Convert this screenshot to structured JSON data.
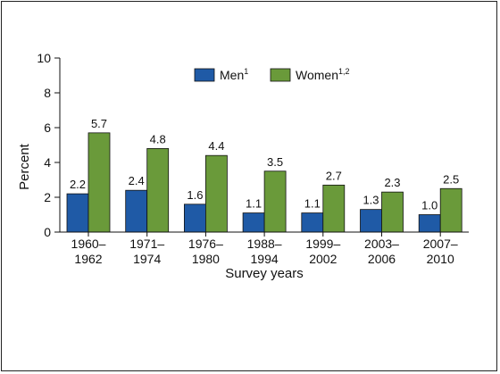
{
  "chart_data": {
    "type": "bar",
    "xlabel": "Survey years",
    "ylabel": "Percent",
    "ylim": [
      0,
      10
    ],
    "yticks": [
      0,
      2,
      4,
      6,
      8,
      10
    ],
    "categories": [
      [
        "1960–",
        "1962"
      ],
      [
        "1971–",
        "1974"
      ],
      [
        "1976–",
        "1980"
      ],
      [
        "1988–",
        "1994"
      ],
      [
        "1999–",
        "2002"
      ],
      [
        "2003–",
        "2006"
      ],
      [
        "2007–",
        "2010"
      ]
    ],
    "series": [
      {
        "name": "Men",
        "sup": "1",
        "color": "#1f5aa6",
        "values": [
          2.2,
          2.4,
          1.6,
          1.1,
          1.1,
          1.3,
          1.0
        ],
        "labels": [
          "2.2",
          "2.4",
          "1.6",
          "1.1",
          "1.1",
          "1.3",
          "1.0"
        ]
      },
      {
        "name": "Women",
        "sup": "1,2",
        "color": "#6a9a3a",
        "values": [
          5.7,
          4.8,
          4.4,
          3.5,
          2.7,
          2.3,
          2.5
        ],
        "labels": [
          "5.7",
          "4.8",
          "4.4",
          "3.5",
          "2.7",
          "2.3",
          "2.5"
        ]
      }
    ],
    "legend_position": "top-center",
    "grid": false
  }
}
